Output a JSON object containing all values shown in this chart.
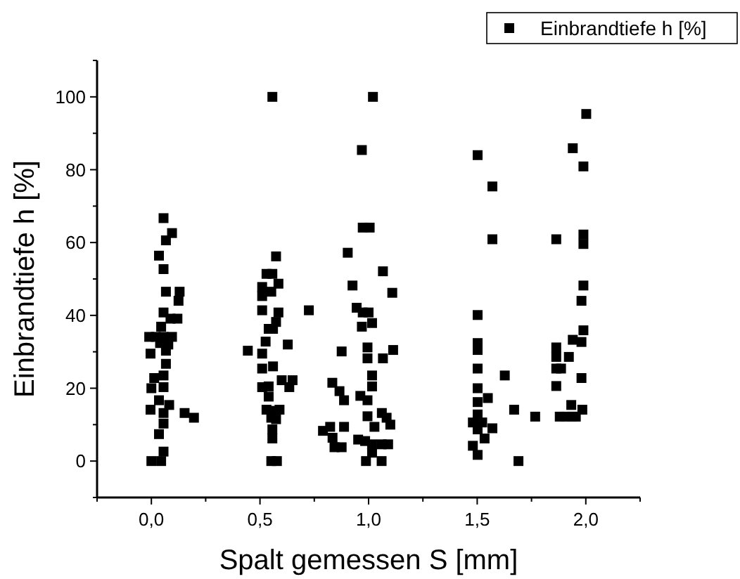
{
  "chart_data": {
    "type": "scatter",
    "xlabel": "Spalt gemessen S [mm]",
    "ylabel": "Einbrandtiefe h [%]",
    "xlim": [
      -0.25,
      2.25
    ],
    "xticks": [
      {
        "value": -0.25,
        "label": null
      },
      {
        "value": 0,
        "label": "0,0"
      },
      {
        "value": 0.25,
        "label": null
      },
      {
        "value": 0.5,
        "label": "0,5"
      },
      {
        "value": 0.75,
        "label": null
      },
      {
        "value": 1,
        "label": "1,0"
      },
      {
        "value": 1.25,
        "label": null
      },
      {
        "value": 1.5,
        "label": "1,5"
      },
      {
        "value": 1.75,
        "label": null
      },
      {
        "value": 2,
        "label": "2,0"
      },
      {
        "value": 2.25,
        "label": null
      }
    ],
    "ylim": [
      -10,
      110
    ],
    "yticks": [
      {
        "value": -10,
        "label": null
      },
      0,
      {
        "value": 10,
        "label": null
      },
      20,
      {
        "value": 30,
        "label": null
      },
      40,
      {
        "value": 50,
        "label": null
      },
      60,
      {
        "value": 70,
        "label": null
      },
      80,
      {
        "value": 90,
        "label": null
      },
      100,
      {
        "value": 110,
        "label": null
      }
    ],
    "legend": "top right",
    "marker": "square",
    "grid": false,
    "series": [
      {
        "name": "Einbrandtiefe h [%]",
        "color": "#000000",
        "x": [
          0.056,
          0.095,
          0.067,
          0.035,
          0.056,
          0.067,
          0.13,
          0.125,
          0.056,
          0.088,
          0.12,
          0.045,
          -0.01,
          0.02,
          0.056,
          0.095,
          0.04,
          0.078,
          0.067,
          -0.004,
          0.067,
          0.013,
          0.056,
          0,
          0.056,
          0.035,
          0.082,
          -0.004,
          0.056,
          0.153,
          0.196,
          0.056,
          0.035,
          0.056,
          0,
          0.045,
          0.557,
          0.574,
          0.53,
          0.557,
          0.585,
          0.51,
          0.552,
          0.51,
          0.51,
          0.585,
          0.574,
          0.54,
          0.56,
          0.444,
          0.526,
          0.628,
          0.51,
          0.56,
          0.51,
          0.51,
          0.54,
          0.6,
          0.65,
          0.635,
          0.54,
          0.53,
          0.557,
          0.59,
          0.552,
          0.574,
          0.557,
          0.557,
          0.552,
          0.578,
          0.725,
          1.02,
          0.969,
          0.973,
          1.005,
          0.904,
          1.066,
          0.926,
          1.109,
          0.945,
          0.973,
          1.0,
          1.016,
          0.969,
          0.995,
          1.113,
          0.876,
          0.995,
          1.066,
          1.016,
          1.016,
          0.833,
          0.866,
          0.887,
          0.962,
          0.995,
          0.995,
          1.061,
          1.083,
          1.1,
          1.027,
          0.79,
          0.823,
          0.887,
          0.834,
          0.876,
          0.843,
          0.952,
          0.984,
          1.016,
          1.06,
          1.09,
          1.016,
          0.988,
          1.06,
          1.502,
          1.57,
          1.57,
          1.502,
          1.502,
          1.502,
          1.502,
          1.627,
          1.502,
          1.549,
          1.502,
          1.67,
          1.767,
          1.502,
          1.48,
          1.523,
          1.57,
          1.502,
          1.534,
          1.48,
          1.502,
          1.69,
          2.002,
          1.94,
          1.989,
          1.864,
          1.989,
          1.989,
          1.989,
          1.98,
          1.989,
          1.94,
          1.98,
          1.864,
          1.864,
          1.922,
          1.864,
          1.886,
          1.98,
          1.864,
          1.933,
          1.984,
          1.88,
          1.907,
          1.937,
          1.954
        ],
        "values": [
          66.7,
          62.6,
          60.6,
          56.4,
          52.7,
          46.5,
          46.5,
          44,
          40.8,
          39.1,
          39.1,
          36.9,
          34.1,
          34.1,
          34.1,
          34.1,
          32.4,
          32,
          30.3,
          29.5,
          26.7,
          22.8,
          23.5,
          20,
          20.3,
          16.7,
          15.4,
          14.1,
          13.2,
          13.2,
          11.9,
          10.3,
          7.4,
          2.6,
          0,
          0,
          100,
          56.2,
          51.4,
          51.4,
          48.7,
          47.8,
          46.5,
          45.3,
          41.4,
          40.8,
          38.2,
          36.3,
          36.3,
          30.3,
          32.8,
          32,
          29.5,
          26,
          25.4,
          20.3,
          20.5,
          22.2,
          22.2,
          20.3,
          17.7,
          14.1,
          13.8,
          14.1,
          11.9,
          11.5,
          8.7,
          6.2,
          0,
          0,
          41.4,
          100,
          85.4,
          64.1,
          64.1,
          57.2,
          52.1,
          48.2,
          46.2,
          42.1,
          40.8,
          40.8,
          37.9,
          36.9,
          31.2,
          30.5,
          30.1,
          28.2,
          28.2,
          23.5,
          20.5,
          21.5,
          19.2,
          16.7,
          17.9,
          16.7,
          12.3,
          13.2,
          11.9,
          10,
          9.4,
          8.3,
          9.4,
          9.4,
          6.4,
          3.8,
          3.8,
          5.9,
          5.5,
          4.6,
          4.6,
          4.6,
          2.3,
          0,
          0,
          84,
          75.4,
          60.9,
          40.1,
          32.4,
          30.5,
          25.4,
          23.5,
          20,
          17.3,
          16.2,
          14.1,
          12.2,
          12.8,
          10.6,
          10.6,
          9,
          8.7,
          6.2,
          4.2,
          1.7,
          0,
          95.3,
          85.9,
          80.9,
          60.9,
          62.2,
          59.6,
          48.2,
          44,
          35.9,
          33.3,
          32.7,
          31.2,
          28.6,
          28.6,
          25.4,
          25.4,
          22.8,
          20.6,
          15.4,
          14.1,
          12.2,
          12.2,
          12.2,
          12.2
        ]
      }
    ]
  }
}
